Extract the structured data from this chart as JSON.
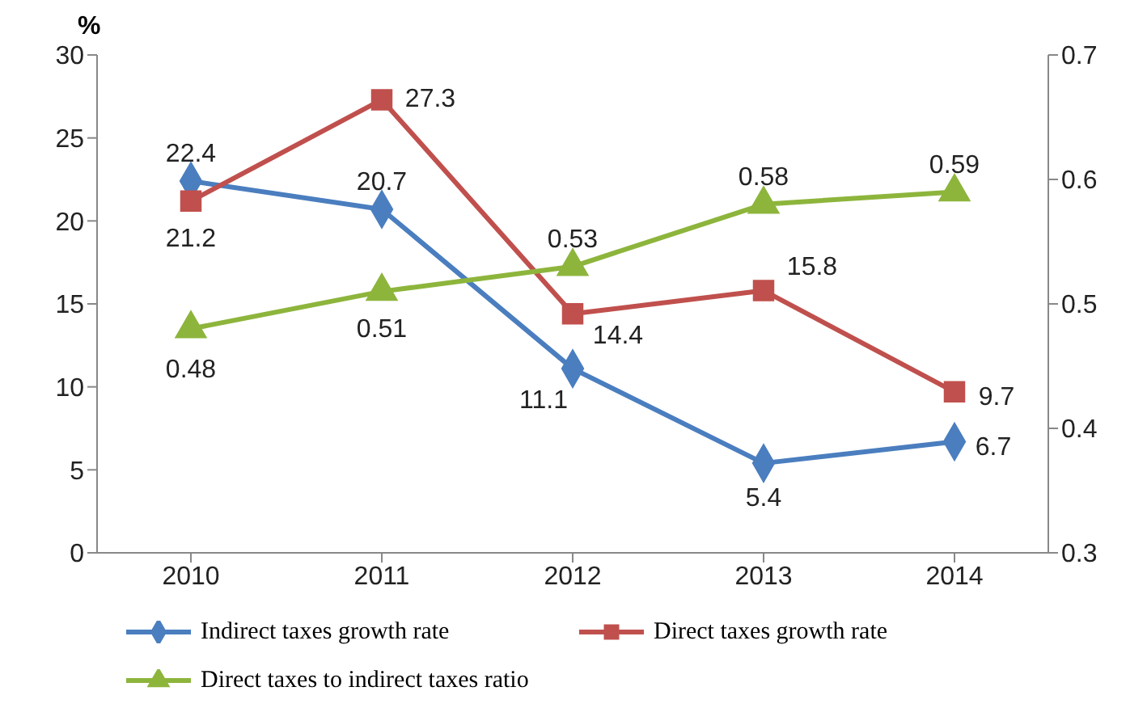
{
  "chart_data": {
    "type": "line",
    "ylabel": "%",
    "categories": [
      "2010",
      "2011",
      "2012",
      "2013",
      "2014"
    ],
    "series": [
      {
        "name": "Indirect taxes growth rate",
        "color": "#4a7ebf",
        "marker": "diamond",
        "values": [
          22.4,
          20.7,
          11.1,
          5.4,
          6.7
        ]
      },
      {
        "name": "Direct taxes growth rate",
        "color": "#c0504d",
        "marker": "square",
        "values": [
          21.2,
          27.3,
          14.4,
          15.8,
          9.7
        ]
      },
      {
        "name": "Direct taxes to indirect taxes ratio",
        "color": "#8db53c",
        "marker": "triangle",
        "axis": "y2",
        "values": [
          0.48,
          0.51,
          0.53,
          0.58,
          0.59
        ]
      }
    ],
    "ylim": [
      0,
      30
    ],
    "yticks": [
      0,
      5,
      10,
      15,
      20,
      25,
      30
    ],
    "y2lim": [
      0.3,
      0.7
    ],
    "y2ticks": [
      0.3,
      0.4,
      0.5,
      0.6,
      0.7
    ],
    "data_labels": true,
    "legend": "bottom",
    "grid": false
  }
}
